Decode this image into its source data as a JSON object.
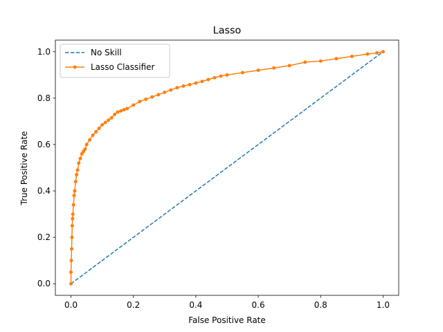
{
  "chart_data": {
    "type": "line",
    "title": "Lasso",
    "xlabel": "False Positive Rate",
    "ylabel": "True Positive Rate",
    "xlim": [
      -0.05,
      1.05
    ],
    "ylim": [
      -0.05,
      1.05
    ],
    "xticks": [
      0.0,
      0.2,
      0.4,
      0.6,
      0.8,
      1.0
    ],
    "xtick_labels": [
      "0.0",
      "0.2",
      "0.4",
      "0.6",
      "0.8",
      "1.0"
    ],
    "yticks": [
      0.0,
      0.2,
      0.4,
      0.6,
      0.8,
      1.0
    ],
    "ytick_labels": [
      "0.0",
      "0.2",
      "0.4",
      "0.6",
      "0.8",
      "1.0"
    ],
    "grid": false,
    "legend_position": "upper-left",
    "series": [
      {
        "name": "No Skill",
        "style": "dashed",
        "color": "#1f77b4",
        "marker": "none",
        "x": [
          0.0,
          1.0
        ],
        "y": [
          0.0,
          1.0
        ]
      },
      {
        "name": "Lasso Classifier",
        "style": "solid",
        "color": "#ff7f0e",
        "marker": "dot",
        "x": [
          0.0,
          0.0,
          0.001,
          0.002,
          0.003,
          0.004,
          0.005,
          0.006,
          0.008,
          0.01,
          0.012,
          0.015,
          0.018,
          0.021,
          0.025,
          0.03,
          0.035,
          0.04,
          0.045,
          0.05,
          0.06,
          0.07,
          0.08,
          0.09,
          0.1,
          0.11,
          0.12,
          0.13,
          0.14,
          0.15,
          0.16,
          0.17,
          0.18,
          0.2,
          0.22,
          0.24,
          0.26,
          0.28,
          0.3,
          0.32,
          0.34,
          0.36,
          0.38,
          0.4,
          0.42,
          0.44,
          0.46,
          0.48,
          0.5,
          0.55,
          0.6,
          0.65,
          0.7,
          0.75,
          0.8,
          0.85,
          0.9,
          0.95,
          0.98,
          1.0
        ],
        "y": [
          0.0,
          0.05,
          0.1,
          0.15,
          0.2,
          0.25,
          0.28,
          0.3,
          0.34,
          0.38,
          0.4,
          0.44,
          0.47,
          0.49,
          0.52,
          0.54,
          0.56,
          0.57,
          0.58,
          0.6,
          0.62,
          0.64,
          0.655,
          0.67,
          0.685,
          0.695,
          0.705,
          0.715,
          0.73,
          0.74,
          0.745,
          0.75,
          0.755,
          0.77,
          0.785,
          0.795,
          0.805,
          0.815,
          0.825,
          0.835,
          0.845,
          0.852,
          0.858,
          0.865,
          0.872,
          0.88,
          0.888,
          0.895,
          0.9,
          0.91,
          0.92,
          0.93,
          0.94,
          0.955,
          0.96,
          0.97,
          0.98,
          0.99,
          0.995,
          1.0
        ]
      }
    ]
  }
}
